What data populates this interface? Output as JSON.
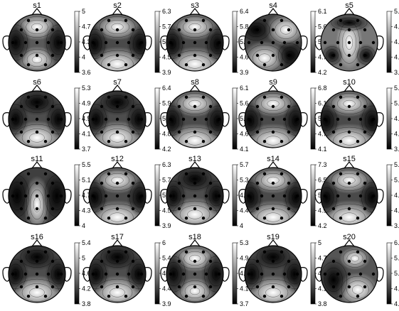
{
  "figure": {
    "panels": [
      {
        "title": "s1",
        "ticks": [
          "5",
          "4.7",
          "4.3",
          "4",
          "3.6"
        ],
        "pattern": "frontal-hot"
      },
      {
        "title": "s2",
        "ticks": [
          "6.3",
          "5.7",
          "5.1",
          "4.5",
          "3.9"
        ],
        "pattern": "frontal-occipital"
      },
      {
        "title": "s3",
        "ticks": [
          "6.4",
          "5.8",
          "5.2",
          "4.6",
          "3.9"
        ],
        "pattern": "frontal-occipital"
      },
      {
        "title": "s4",
        "ticks": [
          "6.1",
          "5.6",
          "5.2",
          "4.7",
          "4.2"
        ],
        "pattern": "right-frontal"
      },
      {
        "title": "s5",
        "ticks": [
          "5.4",
          "4.9",
          "4.5",
          "4.1",
          "3.7"
        ],
        "pattern": "central-blobs"
      },
      {
        "title": "s6",
        "ticks": [
          "5.3",
          "4.9",
          "4.5",
          "4.1",
          "3.7"
        ],
        "pattern": "occipital-hot"
      },
      {
        "title": "s7",
        "ticks": [
          "6.4",
          "5.9",
          "5.3",
          "4.8",
          "4.2"
        ],
        "pattern": "occipital-hot"
      },
      {
        "title": "s8",
        "ticks": [
          "6.1",
          "5.6",
          "5.1",
          "4.6",
          "4.1"
        ],
        "pattern": "frontal-occipital"
      },
      {
        "title": "s9",
        "ticks": [
          "6.8",
          "6.1",
          "5.4",
          "4.7",
          "4.1"
        ],
        "pattern": "frontal-occipital"
      },
      {
        "title": "s10",
        "ticks": [
          "5.8",
          "5.3",
          "4.8",
          "4.3",
          "3.8"
        ],
        "pattern": "frontal-occipital"
      },
      {
        "title": "s11",
        "ticks": [
          "5.5",
          "5.1",
          "4.7",
          "4.3",
          "4"
        ],
        "pattern": "midline-hot"
      },
      {
        "title": "s12",
        "ticks": [
          "6.3",
          "5.7",
          "5.1",
          "4.5",
          "3.9"
        ],
        "pattern": "frontal-occipital"
      },
      {
        "title": "s13",
        "ticks": [
          "5.7",
          "5.3",
          "4.9",
          "4.4",
          "4"
        ],
        "pattern": "occipital-hot"
      },
      {
        "title": "s14",
        "ticks": [
          "7.3",
          "6.5",
          "5.7",
          "4.9",
          "4.2"
        ],
        "pattern": "frontal-occipital"
      },
      {
        "title": "s15",
        "ticks": [
          "5.8",
          "5.2",
          "4.7",
          "4.2",
          "3.6"
        ],
        "pattern": "frontal-occipital"
      },
      {
        "title": "s16",
        "ticks": [
          "5.4",
          "5",
          "4.6",
          "4.2",
          "3.8"
        ],
        "pattern": "occipital-hot"
      },
      {
        "title": "s17",
        "ticks": [
          "6",
          "5.4",
          "4.9",
          "4.4",
          "3.9"
        ],
        "pattern": "occipital-hot"
      },
      {
        "title": "s18",
        "ticks": [
          "5.3",
          "4.9",
          "4.5",
          "4.1",
          "3.7"
        ],
        "pattern": "frontal-hot"
      },
      {
        "title": "s19",
        "ticks": [
          "5",
          "4.7",
          "4.4",
          "4.1",
          "3.8"
        ],
        "pattern": "occipital-hot"
      },
      {
        "title": "s20",
        "ticks": [
          "6.4",
          "5.9",
          "5.4",
          "4.8",
          "4.3"
        ],
        "pattern": "right-occipital"
      }
    ]
  }
}
